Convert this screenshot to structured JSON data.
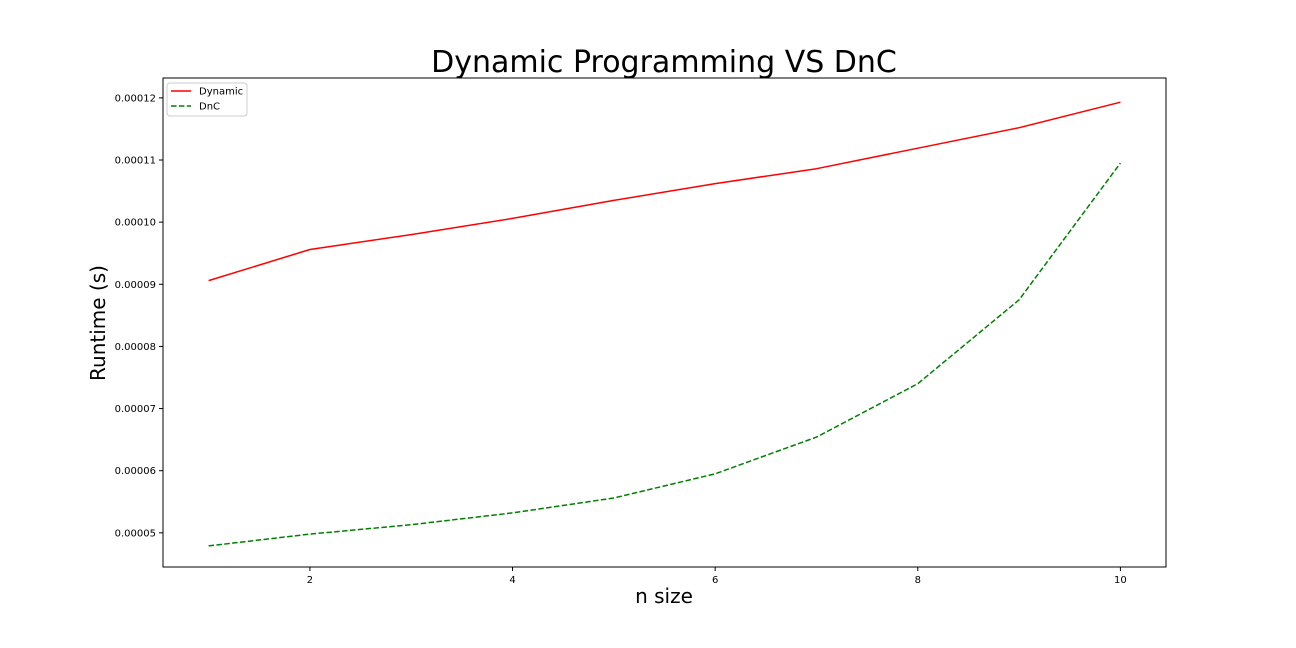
{
  "chart_data": {
    "type": "line",
    "title": "Dynamic Programming VS DnC",
    "xlabel": "n size",
    "ylabel": "Runtime (s)",
    "x": [
      1,
      2,
      3,
      4,
      5,
      6,
      7,
      8,
      9,
      10
    ],
    "xlim": [
      0.55,
      10.45
    ],
    "ylim": [
      4.45e-05,
      0.0001232
    ],
    "xticks": [
      2,
      4,
      6,
      8,
      10
    ],
    "xtick_labels": [
      "2",
      "4",
      "6",
      "8",
      "10"
    ],
    "yticks": [
      5e-05,
      6e-05,
      7e-05,
      8e-05,
      9e-05,
      0.0001,
      0.00011,
      0.00012
    ],
    "ytick_labels": [
      "0.00005",
      "0.00006",
      "0.00007",
      "0.00008",
      "0.00009",
      "0.00010",
      "0.00011",
      "0.00012"
    ],
    "grid": false,
    "legend_position": "top-left",
    "series": [
      {
        "name": "Dynamic",
        "color": "#ff0000",
        "style": "solid",
        "values": [
          9.06e-05,
          9.56e-05,
          9.8e-05,
          0.0001006,
          0.0001035,
          0.0001062,
          0.0001086,
          0.0001119,
          0.0001152,
          0.0001193
        ]
      },
      {
        "name": "DnC",
        "color": "#008000",
        "style": "dashed",
        "values": [
          4.79e-05,
          4.98e-05,
          5.13e-05,
          5.32e-05,
          5.56e-05,
          5.95e-05,
          6.54e-05,
          7.4e-05,
          8.75e-05,
          0.0001095
        ]
      }
    ]
  }
}
